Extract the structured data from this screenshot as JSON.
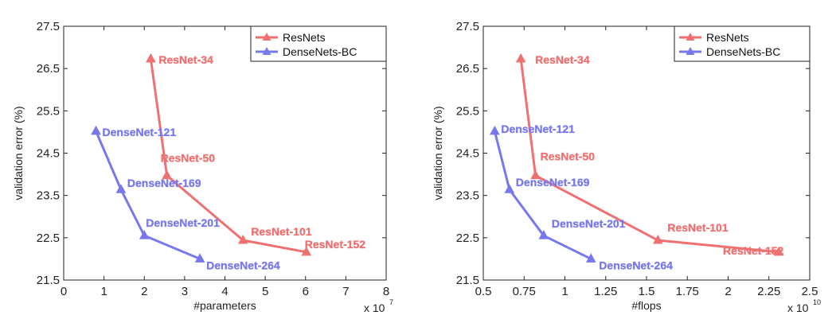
{
  "chart_data": [
    {
      "type": "line",
      "xlabel": "#parameters",
      "ylabel": "validation error (%)",
      "x_multiplier_label": "x 10",
      "x_multiplier_exp": "7",
      "xlim": [
        0,
        8
      ],
      "ylim": [
        21.5,
        27.5
      ],
      "x_ticks": [
        0,
        1,
        2,
        3,
        4,
        5,
        6,
        7,
        8
      ],
      "x_tick_labels": [
        "0",
        "1",
        "2",
        "3",
        "4",
        "5",
        "6",
        "7",
        "8"
      ],
      "y_ticks": [
        21.5,
        22.5,
        23.5,
        24.5,
        25.5,
        26.5,
        27.5
      ],
      "y_tick_labels": [
        "21.5",
        "22.5",
        "23.5",
        "24.5",
        "25.5",
        "26.5",
        "27.5"
      ],
      "grid": false,
      "legend_position": "top-right",
      "series": [
        {
          "name": "ResNets",
          "color": "#f07070",
          "marker": "triangle",
          "x": [
            2.16,
            2.56,
            4.45,
            6.02
          ],
          "y": [
            26.73,
            23.97,
            22.44,
            22.16
          ],
          "labels": [
            "ResNet-34",
            "ResNet-50",
            "ResNet-101",
            "ResNet-152"
          ]
        },
        {
          "name": "DenseNets-BC",
          "color": "#7878ee",
          "marker": "triangle",
          "x": [
            0.8,
            1.42,
            2.0,
            3.38
          ],
          "y": [
            25.02,
            23.64,
            22.55,
            22.0
          ],
          "labels": [
            "DenseNet-121",
            "DenseNet-169",
            "DenseNet-201",
            "DenseNet-264"
          ]
        }
      ]
    },
    {
      "type": "line",
      "xlabel": "#flops",
      "ylabel": "validation error (%)",
      "x_multiplier_label": "x 10",
      "x_multiplier_exp": "10",
      "xlim": [
        0.5,
        2.5
      ],
      "ylim": [
        21.5,
        27.5
      ],
      "x_ticks": [
        0.5,
        0.75,
        1.0,
        1.25,
        1.5,
        1.75,
        2.0,
        2.25,
        2.5
      ],
      "x_tick_labels": [
        "0.5",
        "0.75",
        "1",
        "1.25",
        "1.5",
        "1.75",
        "2",
        "2.25",
        "2.5"
      ],
      "y_ticks": [
        21.5,
        22.5,
        23.5,
        24.5,
        25.5,
        26.5,
        27.5
      ],
      "y_tick_labels": [
        "21.5",
        "22.5",
        "23.5",
        "24.5",
        "25.5",
        "26.5",
        "27.5"
      ],
      "grid": false,
      "legend_position": "top-right",
      "series": [
        {
          "name": "ResNets",
          "color": "#f07070",
          "marker": "triangle",
          "x": [
            0.73,
            0.82,
            1.57,
            2.31
          ],
          "y": [
            26.73,
            23.97,
            22.44,
            22.16
          ],
          "labels": [
            "ResNet-34",
            "ResNet-50",
            "ResNet-101",
            "ResNet-152"
          ]
        },
        {
          "name": "DenseNets-BC",
          "color": "#7878ee",
          "marker": "triangle",
          "x": [
            0.57,
            0.66,
            0.87,
            1.16
          ],
          "y": [
            25.02,
            23.64,
            22.55,
            22.0
          ],
          "labels": [
            "DenseNet-121",
            "DenseNet-169",
            "DenseNet-201",
            "DenseNet-264"
          ]
        }
      ]
    }
  ]
}
